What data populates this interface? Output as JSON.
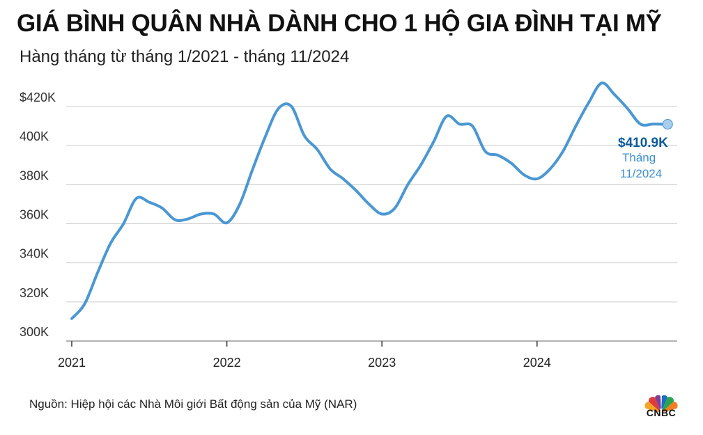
{
  "header": {
    "title": "GIÁ BÌNH QUÂN NHÀ DÀNH CHO 1 HỘ GIA ĐÌNH TẠI MỸ",
    "subtitle": "Hàng tháng từ tháng 1/2021 - tháng 11/2024"
  },
  "footer": {
    "source": "Nguồn: Hiệp hội các Nhà Môi giới Bất động sản của Mỹ (NAR)",
    "logo_text": "CNBC"
  },
  "colors": {
    "line": "#4a97d4",
    "annotation_value": "#0b5a9c",
    "annotation_sub": "#3a8fd4",
    "grid": "#cccccc"
  },
  "chart_data": {
    "type": "line",
    "title": "GIÁ BÌNH QUÂN NHÀ DÀNH CHO 1 HỘ GIA ĐÌNH TẠI MỸ",
    "subtitle": "Hàng tháng từ tháng 1/2021 - tháng 11/2024",
    "xlabel": "",
    "ylabel": "",
    "x_ticks": [
      "2021",
      "2022",
      "2023",
      "2024"
    ],
    "y_ticks": [
      "$420K",
      "400K",
      "380K",
      "360K",
      "340K",
      "320K",
      "300K"
    ],
    "ylim": [
      300,
      420
    ],
    "grid": true,
    "series": [
      {
        "x": [
          "2021-01",
          "2021-02",
          "2021-03",
          "2021-04",
          "2021-05",
          "2021-06",
          "2021-07",
          "2021-08",
          "2021-09",
          "2021-10",
          "2021-11",
          "2021-12",
          "2022-01",
          "2022-02",
          "2022-03",
          "2022-04",
          "2022-05",
          "2022-06",
          "2022-07",
          "2022-08",
          "2022-09",
          "2022-10",
          "2022-11",
          "2022-12",
          "2023-01",
          "2023-02",
          "2023-03",
          "2023-04",
          "2023-05",
          "2023-06",
          "2023-07",
          "2023-08",
          "2023-09",
          "2023-10",
          "2023-11",
          "2023-12",
          "2024-01",
          "2024-02",
          "2024-03",
          "2024-04",
          "2024-05",
          "2024-06",
          "2024-07",
          "2024-08",
          "2024-09",
          "2024-10",
          "2024-11"
        ],
        "values": [
          311.5,
          319,
          335,
          350,
          360,
          373,
          371,
          368,
          362,
          362.5,
          365,
          365,
          360.5,
          370,
          388,
          405,
          419,
          420,
          405,
          398,
          388,
          383,
          377,
          370,
          365,
          368,
          380,
          390,
          402,
          415,
          411,
          410,
          397,
          395,
          391,
          385,
          383,
          388,
          397,
          410,
          422,
          432,
          426,
          419,
          411,
          411,
          410.9
        ]
      }
    ],
    "annotation": {
      "value": "$410.9K",
      "line1": "Tháng",
      "line2": "11/2024"
    }
  }
}
